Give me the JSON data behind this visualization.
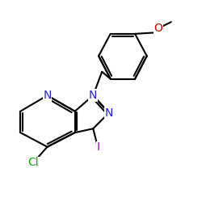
{
  "bg_color": "#ffffff",
  "bond_color": "#000000",
  "bond_width": 1.5,
  "atom_colors": {
    "N": "#2222cc",
    "Cl": "#00aa00",
    "I": "#9900bb",
    "O": "#cc0000",
    "C": "#000000"
  },
  "font_size": 9,
  "fig_size": [
    2.5,
    2.5
  ],
  "dpi": 100
}
